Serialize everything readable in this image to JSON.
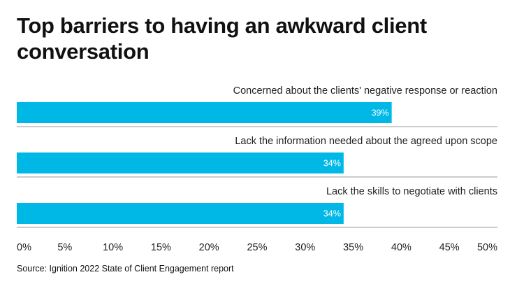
{
  "title": "Top barriers to having an awkward client conversation",
  "source": "Source: Ignition 2022 State of Client Engagement report",
  "colors": {
    "bar": "#00B8E6",
    "divider": "#9a9a9a"
  },
  "chart_data": {
    "type": "bar",
    "orientation": "horizontal",
    "title": "Top barriers to having an awkward client conversation",
    "categories": [
      "Concerned about the clients' negative response or reaction",
      "Lack the information needed about the agreed upon scope",
      "Lack the skills to negotiate with clients"
    ],
    "values": [
      39,
      34,
      34
    ],
    "value_labels": [
      "39%",
      "34%",
      "34%"
    ],
    "xlim": [
      0,
      50
    ],
    "ticks": [
      0,
      5,
      10,
      15,
      20,
      25,
      30,
      35,
      40,
      45,
      50
    ],
    "tick_labels": [
      "0%",
      "5%",
      "10%",
      "15%",
      "20%",
      "25%",
      "30%",
      "35%",
      "40%",
      "45%",
      "50%"
    ],
    "xlabel": "",
    "ylabel": "",
    "grid": false,
    "legend": "none"
  }
}
